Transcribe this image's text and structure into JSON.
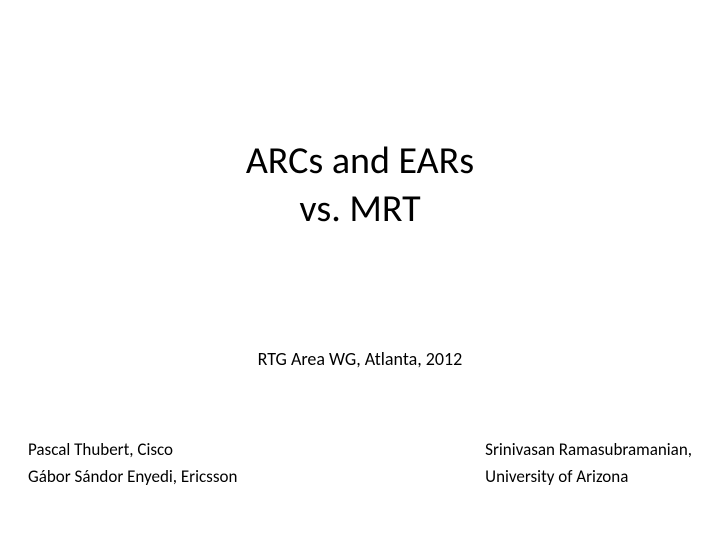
{
  "title": {
    "line1": "ARCs and EARs",
    "line2": "vs. MRT"
  },
  "subtitle": "RTG Area WG, Atlanta, 2012",
  "authors": {
    "left": {
      "line1": "Pascal Thubert, Cisco",
      "line2": "Gábor Sándor Enyedi, Ericsson"
    },
    "right": {
      "line1": "Srinivasan Ramasubramanian,",
      "line2": "University of Arizona"
    }
  },
  "style": {
    "background_color": "#ffffff",
    "text_color": "#000000",
    "title_fontsize": 38,
    "subtitle_fontsize": 18,
    "author_fontsize": 17,
    "font_family": "Calibri"
  }
}
